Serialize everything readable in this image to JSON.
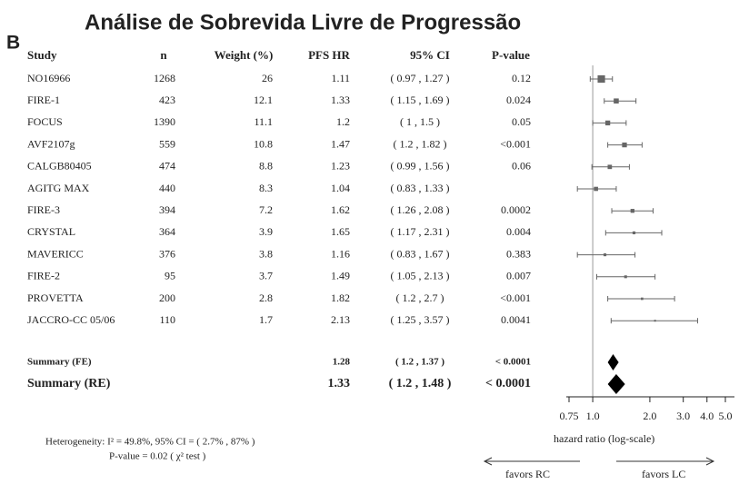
{
  "chart_data": {
    "type": "forest",
    "title": "Análise de Sobrevida Livre de Progressão",
    "panel_label": "B",
    "columns": [
      "Study",
      "n",
      "Weight (%)",
      "PFS HR",
      "95% CI",
      "P-value"
    ],
    "studies": [
      "NO16966",
      "FIRE-1",
      "FOCUS",
      "AVF2107g",
      "CALGB80405",
      "AGITG MAX",
      "FIRE-3",
      "CRYSTAL",
      "MAVERICC",
      "FIRE-2",
      "PROVETTA",
      "JACCRO-CC 05/06"
    ],
    "n": [
      1268,
      423,
      1390,
      559,
      474,
      440,
      394,
      364,
      376,
      95,
      200,
      110
    ],
    "weights": [
      26,
      12.1,
      11.1,
      10.8,
      8.8,
      8.3,
      7.2,
      3.9,
      3.8,
      3.7,
      2.8,
      1.7
    ],
    "values": [
      1.11,
      1.33,
      1.2,
      1.47,
      1.23,
      1.04,
      1.62,
      1.65,
      1.16,
      1.49,
      1.82,
      2.13
    ],
    "ci_low": [
      0.97,
      1.15,
      1,
      1.2,
      0.99,
      0.83,
      1.26,
      1.17,
      0.83,
      1.05,
      1.2,
      1.25
    ],
    "ci_high": [
      1.27,
      1.69,
      1.5,
      1.82,
      1.56,
      1.33,
      2.08,
      2.31,
      1.67,
      2.13,
      2.7,
      3.57
    ],
    "ci_labels": [
      "( 0.97 , 1.27 )",
      "( 1.15 , 1.69 )",
      "( 1 , 1.5 )",
      "( 1.2 , 1.82 )",
      "( 0.99 , 1.56 )",
      "( 0.83 , 1.33 )",
      "( 1.26 , 2.08 )",
      "( 1.17 , 2.31 )",
      "( 0.83 , 1.67 )",
      "( 1.05 , 2.13 )",
      "( 1.2 , 2.7 )",
      "( 1.25 , 3.57 )"
    ],
    "p_values": [
      0.12,
      0.024,
      0.05,
      "<0.001",
      0.06,
      null,
      0.0002,
      0.004,
      0.383,
      0.007,
      "<0.001",
      0.0041
    ],
    "summary": [
      {
        "name": "Summary (FE)",
        "value": 1.28,
        "ci_low": 1.2,
        "ci_high": 1.37,
        "ci_label": "( 1.2 , 1.37 )",
        "p_value": "< 0.0001"
      },
      {
        "name": "Summary (RE)",
        "value": 1.33,
        "ci_low": 1.2,
        "ci_high": 1.48,
        "ci_label": "( 1.2 , 1.48 )",
        "p_value": "< 0.0001"
      }
    ],
    "x_log": true,
    "xlim": [
      0.75,
      5
    ],
    "xticks": [
      0.75,
      {
        "value": 1,
        "label": "1.0"
      },
      {
        "value": 2,
        "label": "2.0"
      },
      {
        "value": 3,
        "label": "3.0"
      },
      {
        "value": 4,
        "label": "4.0"
      },
      {
        "value": 5,
        "label": "5.0"
      }
    ],
    "ref_line": 1,
    "xlabel": "hazard ratio (log-scale)",
    "favors_left": "favors RC",
    "favors_right": "favors LC",
    "heterogeneity": "Heterogeneity: I² = 49.8%,  95% CI = ( 2.7% , 87% )",
    "heterogeneity_p": "P-value = 0.02  ( χ² test )",
    "color": "#666666"
  }
}
